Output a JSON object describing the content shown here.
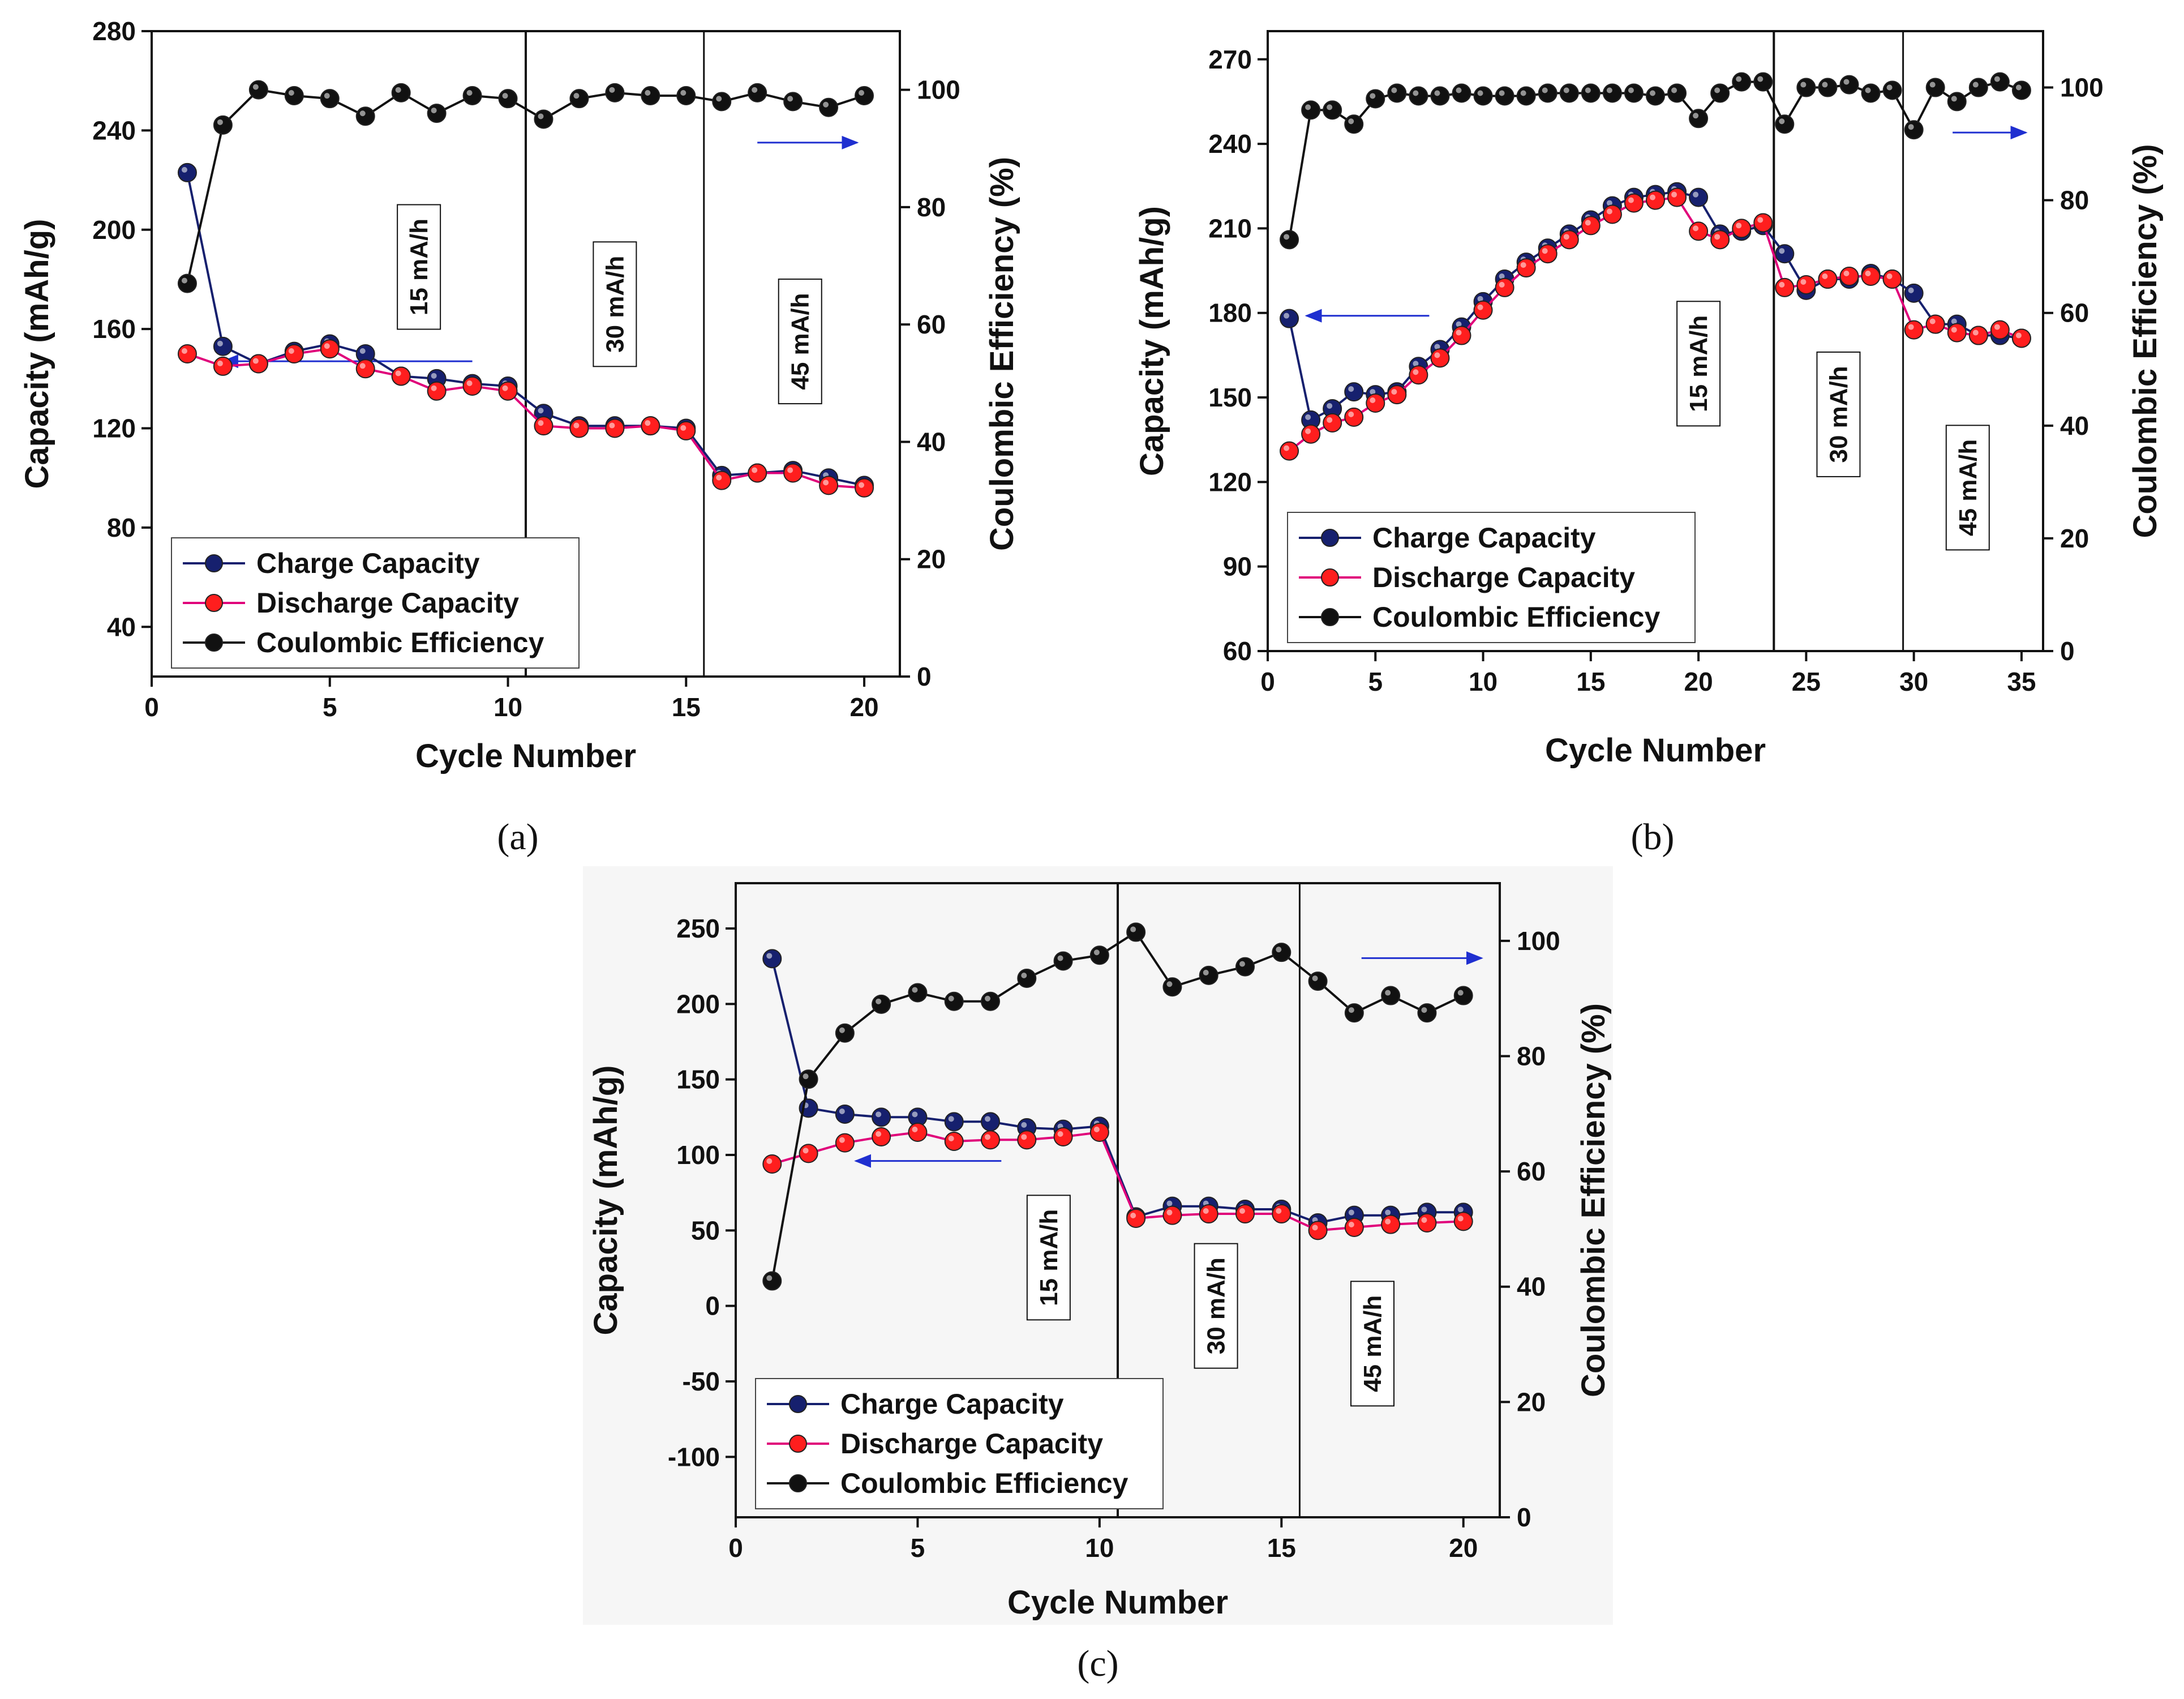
{
  "colors": {
    "charge": "#16206e",
    "discharge": "#ff1e1e",
    "discharge_line": "#e0007a",
    "efficiency": "#111111",
    "arrow": "#1f2fd0",
    "panel_c_background": "#f6f6f6"
  },
  "chart_data": [
    {
      "type": "line",
      "panel": "(a)",
      "xlabel": "Cycle Number",
      "ylabel": "Capacity (mAh/g)",
      "y2label": "Coulombic Efficiency (%)",
      "xlim": [
        0,
        21
      ],
      "ylim": [
        20,
        280
      ],
      "y2lim": [
        0,
        110
      ],
      "xticks": [
        0,
        5,
        10,
        15,
        20
      ],
      "yticks": [
        40,
        80,
        120,
        160,
        200,
        240,
        280
      ],
      "y2ticks": [
        0,
        20,
        40,
        60,
        80,
        100
      ],
      "x": [
        1,
        2,
        3,
        4,
        5,
        6,
        7,
        8,
        9,
        10,
        11,
        12,
        13,
        14,
        15,
        16,
        17,
        18,
        19,
        20
      ],
      "series": [
        {
          "name": "Charge Capacity",
          "axis": "left",
          "values": [
            223,
            153,
            146,
            151,
            154,
            150,
            141,
            140,
            138,
            137,
            126,
            121,
            121,
            121,
            120,
            101,
            102,
            103,
            100,
            97
          ]
        },
        {
          "name": "Discharge Capacity",
          "axis": "left",
          "values": [
            150,
            145,
            146,
            150,
            152,
            144,
            141,
            135,
            137,
            135,
            121,
            120,
            120,
            121,
            119,
            99,
            102,
            102,
            97,
            96
          ]
        },
        {
          "name": "Coulombic Efficiency",
          "axis": "right",
          "values": [
            67,
            94,
            100,
            99,
            98.5,
            95.5,
            99.5,
            96,
            99,
            98.5,
            95,
            98.5,
            99.5,
            99,
            99,
            98,
            99.5,
            98,
            97,
            99
          ]
        }
      ],
      "dividers": [
        10.5,
        15.5
      ],
      "rates": [
        {
          "label": "15 mA/h",
          "x": 7.5,
          "y": 185
        },
        {
          "label": "30 mA/h",
          "x": 13,
          "y": 170
        },
        {
          "label": "45 mA/h",
          "x": 18.2,
          "y": 155
        }
      ],
      "arrows": [
        {
          "axis": "left",
          "x_from": 9,
          "x_to": 2,
          "y": 147
        },
        {
          "axis": "right",
          "x_from": 17,
          "x_to": 19.8,
          "y": 91
        }
      ],
      "legend_position": "bottom-left"
    },
    {
      "type": "line",
      "panel": "(b)",
      "xlabel": "Cycle Number",
      "ylabel": "Capacity (mAh/g)",
      "y2label": "Coulombic Efficiency (%)",
      "xlim": [
        0,
        36
      ],
      "ylim": [
        60,
        280
      ],
      "y2lim": [
        0,
        110
      ],
      "xticks": [
        0,
        5,
        10,
        15,
        20,
        25,
        30,
        35
      ],
      "yticks": [
        60,
        90,
        120,
        150,
        180,
        210,
        240,
        270
      ],
      "y2ticks": [
        0,
        20,
        40,
        60,
        80,
        100
      ],
      "x": [
        1,
        2,
        3,
        4,
        5,
        6,
        7,
        8,
        9,
        10,
        11,
        12,
        13,
        14,
        15,
        16,
        17,
        18,
        19,
        20,
        21,
        22,
        23,
        24,
        25,
        26,
        27,
        28,
        29,
        30,
        31,
        32,
        33,
        34,
        35
      ],
      "series": [
        {
          "name": "Charge Capacity",
          "axis": "left",
          "values": [
            178,
            142,
            146,
            152,
            151,
            152,
            161,
            167,
            175,
            184,
            192,
            198,
            203,
            208,
            213,
            218,
            221,
            222,
            223,
            221,
            208,
            209,
            211,
            201,
            188,
            192,
            192,
            194,
            192,
            187,
            176,
            176,
            172,
            172,
            171
          ]
        },
        {
          "name": "Discharge Capacity",
          "axis": "left",
          "values": [
            131,
            137,
            141,
            143,
            148,
            151,
            158,
            164,
            172,
            181,
            189,
            196,
            201,
            206,
            211,
            215,
            219,
            220,
            221,
            209,
            206,
            210,
            212,
            189,
            190,
            192,
            193,
            193,
            192,
            174,
            176,
            173,
            172,
            174,
            171
          ]
        },
        {
          "name": "Coulombic Efficiency",
          "axis": "right",
          "values": [
            73,
            96,
            96,
            93.5,
            98,
            99,
            98.5,
            98.5,
            99,
            98.5,
            98.5,
            98.5,
            99,
            99,
            99,
            99,
            99,
            98.5,
            99,
            94.5,
            99,
            101,
            101,
            93.5,
            100,
            100,
            100.5,
            99,
            99.5,
            92.5,
            100,
            97.5,
            100,
            101,
            99.5
          ]
        }
      ],
      "dividers": [
        23.5,
        29.5
      ],
      "rates": [
        {
          "label": "15 mA/h",
          "x": 20,
          "y": 162
        },
        {
          "label": "30 mA/h",
          "x": 26.5,
          "y": 144
        },
        {
          "label": "45 mA/h",
          "x": 32.5,
          "y": 118
        }
      ],
      "arrows": [
        {
          "axis": "left",
          "x_from": 7.5,
          "x_to": 1.8,
          "y": 179
        },
        {
          "axis": "right",
          "x_from": 31.8,
          "x_to": 35.2,
          "y": 92
        }
      ],
      "legend_position": "bottom-left"
    },
    {
      "type": "line",
      "panel": "(c)",
      "xlabel": "Cycle Number",
      "ylabel": "Capacity (mAh/g)",
      "y2label": "Coulombic Efficiency (%)",
      "xlim": [
        0,
        21
      ],
      "ylim": [
        -140,
        280
      ],
      "y2lim": [
        0,
        110
      ],
      "xticks": [
        0,
        5,
        10,
        15,
        20
      ],
      "yticks": [
        -100,
        -50,
        0,
        50,
        100,
        150,
        200,
        250
      ],
      "y2ticks": [
        0,
        20,
        40,
        60,
        80,
        100
      ],
      "x": [
        1,
        2,
        3,
        4,
        5,
        6,
        7,
        8,
        9,
        10,
        11,
        12,
        13,
        14,
        15,
        16,
        17,
        18,
        19,
        20
      ],
      "series": [
        {
          "name": "Charge Capacity",
          "axis": "left",
          "values": [
            230,
            131,
            127,
            125,
            125,
            122,
            122,
            118,
            117,
            119,
            59,
            66,
            66,
            64,
            64,
            55,
            60,
            60,
            62,
            62
          ]
        },
        {
          "name": "Discharge Capacity",
          "axis": "left",
          "values": [
            94,
            101,
            108,
            112,
            115,
            109,
            110,
            110,
            112,
            115,
            58,
            60,
            61,
            61,
            61,
            50,
            52,
            54,
            55,
            56
          ]
        },
        {
          "name": "Coulombic Efficiency",
          "axis": "right",
          "values": [
            41,
            76,
            84,
            89,
            91,
            89.5,
            89.5,
            93.5,
            96.5,
            97.5,
            101.5,
            92,
            94,
            95.5,
            98,
            93,
            87.5,
            90.5,
            87.5,
            90.5
          ]
        }
      ],
      "dividers": [
        10.5,
        15.5
      ],
      "rates": [
        {
          "label": "15 mA/h",
          "x": 8.6,
          "y": 32
        },
        {
          "label": "30 mA/h",
          "x": 13.2,
          "y": 0
        },
        {
          "label": "45 mA/h",
          "x": 17.5,
          "y": -25
        }
      ],
      "arrows": [
        {
          "axis": "left",
          "x_from": 7.3,
          "x_to": 3.3,
          "y": 96
        },
        {
          "axis": "right",
          "x_from": 17.2,
          "x_to": 20.5,
          "y": 97
        }
      ],
      "legend_position": "bottom-left"
    }
  ],
  "captions": {
    "a": "(a)",
    "b": "(b)",
    "c": "(c)"
  }
}
